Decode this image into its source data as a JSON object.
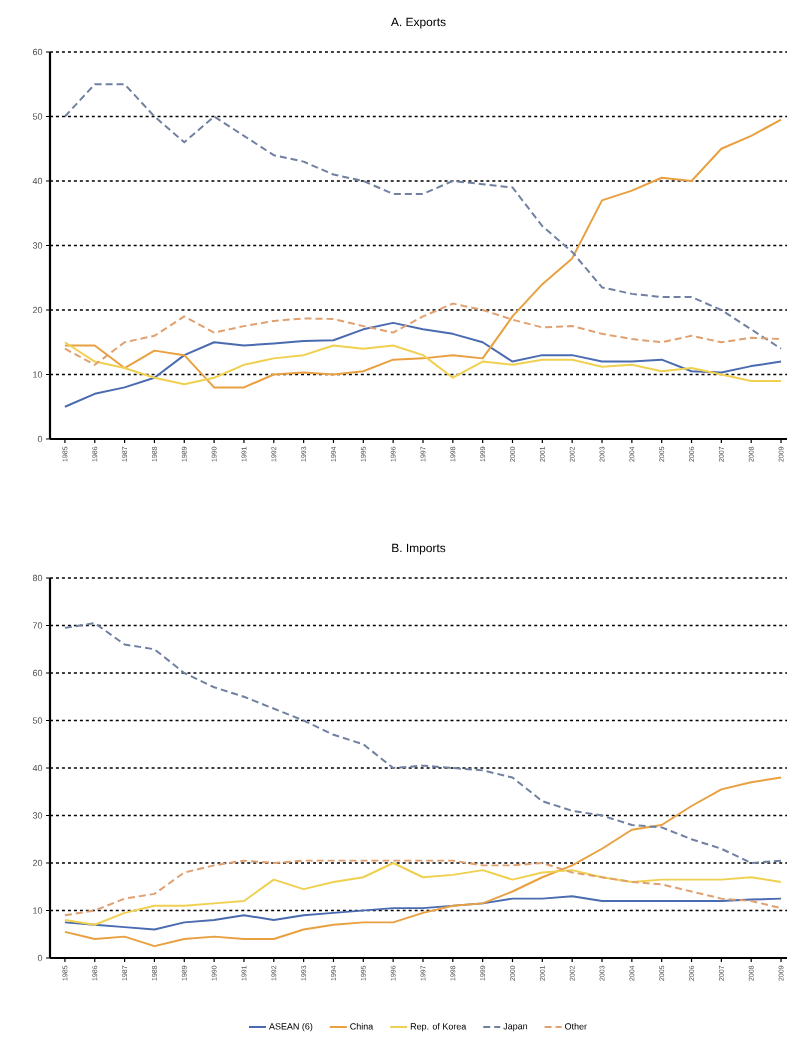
{
  "chart_data": [
    {
      "type": "line",
      "title": "A. Exports",
      "categories": [
        "1985",
        "1986",
        "1987",
        "1988",
        "1989",
        "1990",
        "1991",
        "1992",
        "1993",
        "1994",
        "1995",
        "1996",
        "1997",
        "1998",
        "1999",
        "2000",
        "2001",
        "2002",
        "2003",
        "2004",
        "2005",
        "2006",
        "2007",
        "2008",
        "2009"
      ],
      "ylim": [
        0,
        60
      ],
      "yticks": [
        0,
        10,
        20,
        30,
        40,
        50,
        60
      ],
      "grid": "y",
      "marker": "none",
      "series": [
        {
          "color": "#4a6bb0",
          "line_style": "solid",
          "values": [
            5,
            7,
            8,
            9.5,
            13,
            15,
            14.5,
            14.8,
            15.2,
            15.3,
            17,
            18,
            17,
            16.3,
            15,
            12,
            13,
            13,
            12,
            12,
            12.3,
            10.5,
            10.3,
            11.3,
            12
          ]
        },
        {
          "color": "#e8a040",
          "line_style": "solid",
          "values": [
            14.5,
            14.5,
            11,
            13.7,
            13,
            8,
            8,
            10,
            10.3,
            10,
            10.5,
            12.3,
            12.5,
            13,
            12.5,
            19,
            24,
            28,
            37,
            38.5,
            40.5,
            40,
            45,
            47,
            49.5
          ]
        },
        {
          "color": "#f0d050",
          "line_style": "solid",
          "values": [
            15,
            12,
            11,
            9.5,
            8.5,
            9.5,
            11.5,
            12.5,
            13,
            14.5,
            14,
            14.5,
            13,
            9.5,
            12,
            11.5,
            12.3,
            12.3,
            11.2,
            11.5,
            10.5,
            11,
            10,
            9,
            9
          ]
        },
        {
          "color": "#7080a0",
          "line_style": "dashed",
          "values": [
            50,
            55,
            55,
            50,
            46,
            50,
            47,
            44,
            43,
            41,
            40,
            38,
            38,
            40,
            39.5,
            39,
            33,
            29,
            23.5,
            22.5,
            22,
            22,
            20,
            17,
            14
          ]
        },
        {
          "color": "#e0a070",
          "line_style": "dashed",
          "values": [
            14,
            11.5,
            15,
            16,
            19,
            16.5,
            17.5,
            18.3,
            18.7,
            18.6,
            17.5,
            16.5,
            19,
            21,
            20,
            18.5,
            17.3,
            17.5,
            16.3,
            15.5,
            15,
            16,
            15,
            15.7,
            15.5
          ]
        }
      ]
    },
    {
      "type": "line",
      "title": "B. Imports",
      "categories": [
        "1985",
        "1986",
        "1987",
        "1988",
        "1989",
        "1990",
        "1991",
        "1992",
        "1993",
        "1994",
        "1995",
        "1996",
        "1997",
        "1998",
        "1999",
        "2000",
        "2001",
        "2002",
        "2003",
        "2004",
        "2005",
        "2006",
        "2007",
        "2008",
        "2009"
      ],
      "ylim": [
        0,
        80
      ],
      "yticks": [
        0,
        10,
        20,
        30,
        40,
        50,
        60,
        70,
        80
      ],
      "grid": "y",
      "marker": "none",
      "legend": "bottom",
      "series": [
        {
          "name": "ASEAN (6)",
          "color": "#4a6bb0",
          "line_style": "solid",
          "values": [
            7.5,
            7,
            6.5,
            6,
            7.5,
            8,
            9,
            8,
            9,
            9.5,
            10,
            10.5,
            10.5,
            11,
            11.5,
            12.5,
            12.5,
            13,
            12,
            12,
            12,
            12,
            12,
            12.3,
            12.5
          ]
        },
        {
          "name": "China",
          "color": "#e8a040",
          "line_style": "solid",
          "values": [
            5.5,
            4,
            4.5,
            2.5,
            4,
            4.5,
            4,
            4,
            6,
            7,
            7.5,
            7.5,
            9.5,
            11,
            11.5,
            14,
            17,
            19.5,
            23,
            27,
            28,
            32,
            35.5,
            37,
            38
          ]
        },
        {
          "name": "Rep. of Korea",
          "color": "#f0d050",
          "line_style": "solid",
          "values": [
            8,
            7,
            9.5,
            11,
            11,
            11.5,
            12,
            16.5,
            14.5,
            16,
            17,
            20,
            17,
            17.5,
            18.5,
            16.5,
            18,
            18.5,
            17,
            16,
            16.5,
            16.5,
            16.5,
            17,
            16
          ]
        },
        {
          "name": "Japan",
          "color": "#7080a0",
          "line_style": "dashed",
          "values": [
            69.5,
            70.5,
            66,
            65,
            60,
            57,
            55,
            52.5,
            50,
            47,
            45,
            40,
            40.5,
            40,
            39.5,
            38,
            33,
            31,
            30,
            28,
            27.5,
            25,
            23,
            20,
            20.5
          ]
        },
        {
          "name": "Other",
          "color": "#e0a070",
          "line_style": "dashed",
          "values": [
            9,
            10,
            12.5,
            13.5,
            18,
            19.5,
            20.5,
            20,
            20.5,
            20.5,
            20.5,
            20.5,
            20.5,
            20.5,
            19.5,
            19.5,
            20,
            18,
            17,
            16,
            15.5,
            14,
            12.5,
            12,
            10.5
          ]
        }
      ]
    }
  ]
}
